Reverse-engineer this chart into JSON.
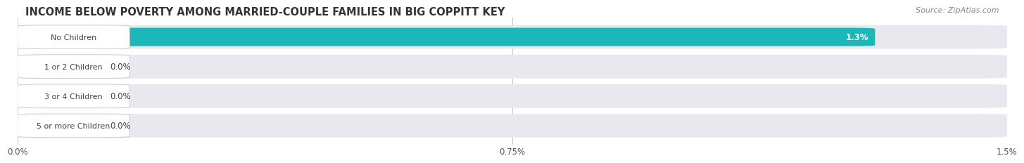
{
  "title": "INCOME BELOW POVERTY AMONG MARRIED-COUPLE FAMILIES IN BIG COPPITT KEY",
  "source": "Source: ZipAtlas.com",
  "categories": [
    "No Children",
    "1 or 2 Children",
    "3 or 4 Children",
    "5 or more Children"
  ],
  "values": [
    1.3,
    0.0,
    0.0,
    0.0
  ],
  "bar_colors": [
    "#1ab8b8",
    "#a0a0e0",
    "#f090a8",
    "#f5c898"
  ],
  "bar_bg_color": "#e8e8ee",
  "xlim": [
    0,
    1.5
  ],
  "xticks": [
    0.0,
    0.75,
    1.5
  ],
  "xticklabels": [
    "0.0%",
    "0.75%",
    "1.5%"
  ],
  "title_fontsize": 10.5,
  "source_fontsize": 8,
  "label_fontsize": 8,
  "value_fontsize": 8.5,
  "fig_bg_color": "#ffffff",
  "bar_area_bg": "#f0f0f0"
}
